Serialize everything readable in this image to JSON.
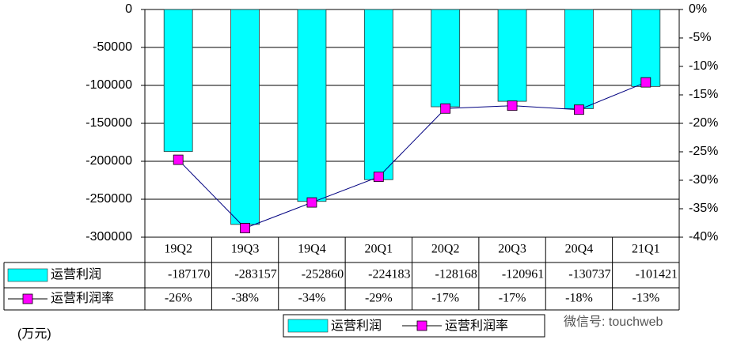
{
  "chart_data": {
    "type": "bar-line",
    "unit_label": "(万元)",
    "watermark": "微信号: touchweb",
    "categories": [
      "19Q2",
      "19Q3",
      "19Q4",
      "20Q1",
      "20Q2",
      "20Q3",
      "20Q4",
      "21Q1"
    ],
    "series": [
      {
        "name": "运营利润",
        "type": "bar",
        "color": "#00ffff",
        "values": [
          -187170,
          -283157,
          -252860,
          -224183,
          -128168,
          -120961,
          -130737,
          -101421
        ]
      },
      {
        "name": "运营利润率",
        "type": "line",
        "axis": "y2",
        "color": "#ff00ff",
        "line_color": "#000080",
        "values": [
          -26.4,
          -38.4,
          -33.9,
          -29.4,
          -17.4,
          -16.9,
          -17.6,
          -12.8
        ],
        "value_labels": [
          "-26%",
          "-38%",
          "-34%",
          "-29%",
          "-17%",
          "-17%",
          "-18%",
          "-13%"
        ]
      }
    ],
    "ylim": [
      -300000,
      0
    ],
    "yticks": [
      0,
      -50000,
      -100000,
      -150000,
      -200000,
      -250000,
      -300000
    ],
    "y2lim": [
      -40,
      0
    ],
    "y2ticks": [
      {
        "value": 0,
        "label": "0%"
      },
      {
        "value": -5,
        "label": "-5%"
      },
      {
        "value": -10,
        "label": "-10%"
      },
      {
        "value": -15,
        "label": "-15%"
      },
      {
        "value": -20,
        "label": "-20%"
      },
      {
        "value": -25,
        "label": "-25%"
      },
      {
        "value": -30,
        "label": "-30%"
      },
      {
        "value": -35,
        "label": "-35%"
      },
      {
        "value": -40,
        "label": "-40%"
      }
    ],
    "grid": true
  }
}
